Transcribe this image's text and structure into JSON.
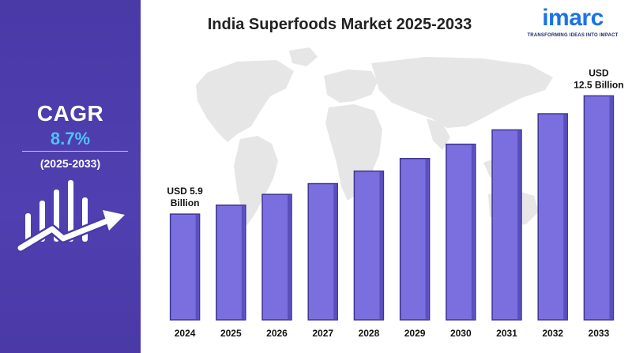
{
  "title": "India Superfoods Market 2025-2033",
  "logo": {
    "word": "imarc",
    "tagline": "TRANSFORMING IDEAS INTO IMPACT"
  },
  "cagr": {
    "label": "CAGR",
    "value": "8.7%",
    "period": "(2025-2033)"
  },
  "colors": {
    "panel": "#4a3aa8",
    "bar": "#7b6fe0",
    "bar_outline": "#3f3591",
    "cagr_value": "#4fc3f7",
    "map": "#e6e6e6"
  },
  "icons": [
    "growth-chart-icon",
    "world-map-background"
  ],
  "chart_data": {
    "type": "bar",
    "title": "India Superfoods Market 2025-2033",
    "xlabel": "",
    "ylabel": "",
    "categories": [
      "2024",
      "2025",
      "2026",
      "2027",
      "2028",
      "2029",
      "2030",
      "2031",
      "2032",
      "2033"
    ],
    "values": [
      5.9,
      6.4,
      7.0,
      7.6,
      8.3,
      9.0,
      9.8,
      10.6,
      11.5,
      12.5
    ],
    "ylim": [
      0,
      13
    ],
    "grid": false,
    "annotations": [
      {
        "category": "2024",
        "lines": [
          "USD  5.9",
          "Billion"
        ]
      },
      {
        "category": "2033",
        "lines": [
          "USD",
          "12.5 Billion"
        ]
      }
    ]
  }
}
